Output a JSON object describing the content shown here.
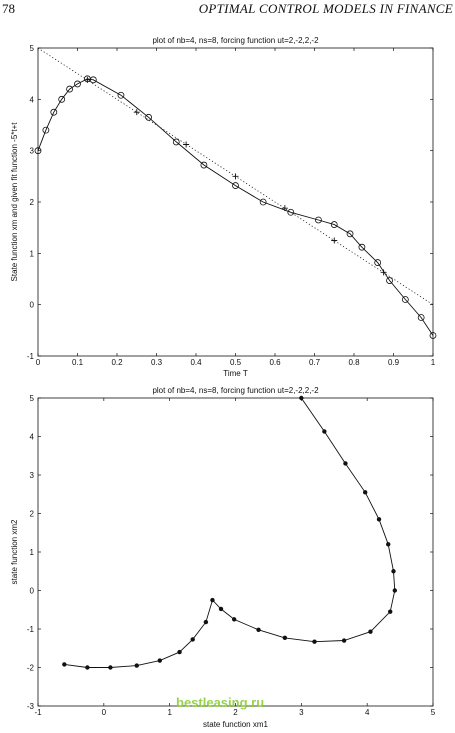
{
  "page": {
    "page_number": "78",
    "running_head": "OPTIMAL CONTROL MODELS IN FINANCE",
    "watermark": "bestleasing.ru"
  },
  "chart_data": [
    {
      "type": "line",
      "title": "plot of nb=4, ns=8, forcing function ut=2,-2,2,-2",
      "xlabel": "Time T",
      "ylabel": "State function xm and given fit function -5*t+t",
      "xlim": [
        0,
        1
      ],
      "ylim": [
        -1,
        5
      ],
      "xticks": [
        "0",
        "0.1",
        "0.2",
        "0.3",
        "0.4",
        "0.5",
        "0.6",
        "0.7",
        "0.8",
        "0.9",
        "1"
      ],
      "yticks": [
        "-1",
        "0",
        "1",
        "2",
        "3",
        "4",
        "5"
      ],
      "grid": false,
      "series": [
        {
          "style": "solid-circles",
          "x": [
            0.0,
            0.02,
            0.04,
            0.06,
            0.08,
            0.1,
            0.125,
            0.14,
            0.21,
            0.28,
            0.35,
            0.42,
            0.5,
            0.57,
            0.64,
            0.71,
            0.75,
            0.79,
            0.82,
            0.86,
            0.89,
            0.93,
            0.97,
            1.0
          ],
          "y": [
            3.0,
            3.4,
            3.75,
            4.0,
            4.2,
            4.3,
            4.4,
            4.38,
            4.08,
            3.65,
            3.17,
            2.72,
            2.32,
            2.0,
            1.8,
            1.65,
            1.56,
            1.38,
            1.12,
            0.82,
            0.47,
            0.1,
            -0.25,
            -0.6
          ]
        },
        {
          "style": "dotted-plus",
          "x": [
            0.0,
            1.0
          ],
          "y": [
            5.0,
            0.0
          ],
          "markers_x": [
            0.125,
            0.25,
            0.375,
            0.5,
            0.625,
            0.75,
            0.875
          ],
          "markers_y": [
            4.38,
            3.75,
            3.12,
            2.5,
            1.88,
            1.25,
            0.63
          ]
        }
      ]
    },
    {
      "type": "line",
      "title": "plot of nb=4, ns=8, forcing function ut=2,-2,2,-2",
      "xlabel": "state function xm1",
      "ylabel": "state function xm2",
      "xlim": [
        -1,
        5
      ],
      "ylim": [
        -3,
        5
      ],
      "xticks": [
        "-1",
        "0",
        "1",
        "2",
        "3",
        "4",
        "5"
      ],
      "yticks": [
        "-3",
        "-2",
        "-1",
        "0",
        "1",
        "2",
        "3",
        "4",
        "5"
      ],
      "grid": false,
      "series": [
        {
          "style": "solid-dots",
          "x": [
            -0.6,
            -0.25,
            0.1,
            0.5,
            0.85,
            1.15,
            1.35,
            1.55,
            1.65,
            1.78,
            1.98,
            2.35,
            2.75,
            3.2,
            3.65,
            4.05,
            4.35,
            4.42,
            4.4,
            4.32,
            4.18,
            3.97,
            3.67,
            3.35,
            3.0
          ],
          "y": [
            -1.92,
            -2.0,
            -2.0,
            -1.95,
            -1.82,
            -1.6,
            -1.27,
            -0.82,
            -0.25,
            -0.48,
            -0.75,
            -1.02,
            -1.23,
            -1.33,
            -1.3,
            -1.07,
            -0.55,
            0.0,
            0.5,
            1.2,
            1.85,
            2.55,
            3.3,
            4.13,
            5.0
          ]
        }
      ]
    }
  ]
}
